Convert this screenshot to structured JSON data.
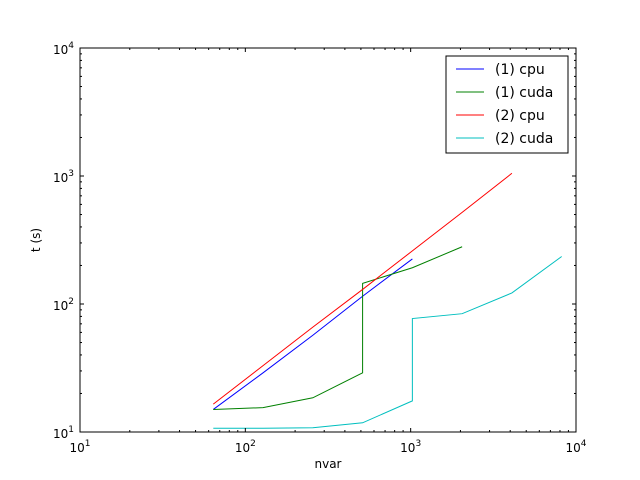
{
  "chart_data": {
    "type": "line",
    "title": "",
    "xlabel": "nvar",
    "ylabel": "t (s)",
    "x_scale": "log",
    "y_scale": "log",
    "xlim": [
      10,
      10000
    ],
    "ylim": [
      10,
      10000
    ],
    "x_ticks": [
      {
        "base": "10",
        "exp": "1",
        "value": 10
      },
      {
        "base": "10",
        "exp": "2",
        "value": 100
      },
      {
        "base": "10",
        "exp": "3",
        "value": 1000
      },
      {
        "base": "10",
        "exp": "4",
        "value": 10000
      }
    ],
    "y_ticks": [
      {
        "base": "10",
        "exp": "1",
        "value": 10
      },
      {
        "base": "10",
        "exp": "2",
        "value": 100
      },
      {
        "base": "10",
        "exp": "3",
        "value": 1000
      },
      {
        "base": "10",
        "exp": "4",
        "value": 10000
      }
    ],
    "grid": false,
    "legend_position": "top-right",
    "series": [
      {
        "name": "(1) cpu",
        "color": "#0000ff",
        "x": [
          64,
          128,
          256,
          512,
          1024
        ],
        "y": [
          15,
          29,
          57,
          115,
          225
        ]
      },
      {
        "name": "(1) cuda",
        "color": "#008000",
        "x": [
          64,
          128,
          256,
          512,
          512,
          1024,
          2048
        ],
        "y": [
          15,
          15.5,
          18.5,
          29,
          145,
          192,
          280
        ]
      },
      {
        "name": "(2) cpu",
        "color": "#ff0000",
        "x": [
          64,
          128,
          256,
          512,
          1024,
          2048,
          4096
        ],
        "y": [
          16.5,
          33,
          66,
          130,
          260,
          520,
          1050
        ]
      },
      {
        "name": "(2) cuda",
        "color": "#00bfbf",
        "x": [
          64,
          128,
          256,
          512,
          1024,
          1024,
          2048,
          4096,
          8192
        ],
        "y": [
          10.7,
          10.7,
          10.8,
          11.8,
          17.5,
          77,
          84,
          122,
          235
        ]
      }
    ]
  }
}
